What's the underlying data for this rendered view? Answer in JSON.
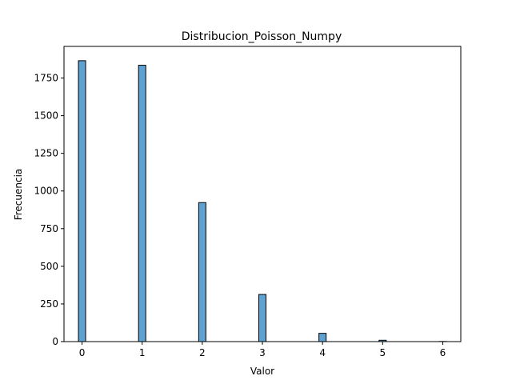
{
  "chart_data": {
    "type": "bar",
    "title": "Distribucion_Poisson_Numpy",
    "xlabel": "Valor",
    "ylabel": "Frecuencia",
    "xlim": [
      -0.3,
      6.3
    ],
    "ylim": [
      0,
      1960
    ],
    "xticks": [
      0,
      1,
      2,
      3,
      4,
      5,
      6
    ],
    "yticks": [
      0,
      250,
      500,
      750,
      1000,
      1250,
      1500,
      1750
    ],
    "bar_width": 0.12,
    "grid": false,
    "legend": "none",
    "bar_color": "#5fa2d1",
    "edge_color": "#000000",
    "bars": [
      {
        "x": 0,
        "value": 1865
      },
      {
        "x": 1,
        "value": 1835
      },
      {
        "x": 2,
        "value": 923
      },
      {
        "x": 3,
        "value": 313
      },
      {
        "x": 4,
        "value": 55
      },
      {
        "x": 5,
        "value": 9
      },
      {
        "x": 6,
        "value": 1
      }
    ]
  }
}
